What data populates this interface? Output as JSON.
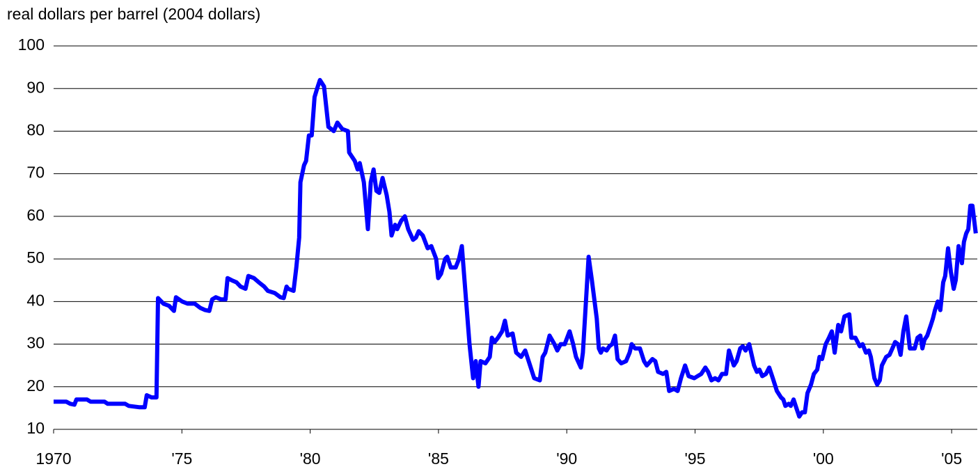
{
  "chart_data": {
    "type": "line",
    "y_label": "real dollars per barrel (2004 dollars)",
    "color": "#0000ff",
    "xlim": [
      1970,
      2006
    ],
    "ylim": [
      10,
      100
    ],
    "xticks": [
      1970,
      {
        "value": 1975,
        "label": "'75"
      },
      {
        "value": 1980,
        "label": "'80"
      },
      {
        "value": 1985,
        "label": "'85"
      },
      {
        "value": 1990,
        "label": "'90"
      },
      {
        "value": 1995,
        "label": "'95"
      },
      {
        "value": 2000,
        "label": "'00"
      },
      {
        "value": 2005,
        "label": "'05"
      }
    ],
    "yticks": [
      10,
      20,
      30,
      40,
      50,
      60,
      70,
      80,
      90,
      100
    ],
    "grid": true,
    "x": [
      1970.0,
      1970.49,
      1970.65,
      1970.81,
      1970.89,
      1971.3,
      1971.44,
      1971.98,
      1972.11,
      1972.79,
      1972.93,
      1973.33,
      1973.55,
      1973.63,
      1973.82,
      1974.01,
      1974.07,
      1974.28,
      1974.5,
      1974.69,
      1974.77,
      1975.01,
      1975.23,
      1975.5,
      1975.72,
      1975.91,
      1976.07,
      1976.18,
      1976.32,
      1976.53,
      1976.7,
      1976.78,
      1976.94,
      1977.13,
      1977.29,
      1977.48,
      1977.59,
      1977.81,
      1978.0,
      1978.21,
      1978.35,
      1978.62,
      1978.84,
      1978.97,
      1979.08,
      1979.14,
      1979.35,
      1979.46,
      1979.57,
      1979.62,
      1979.76,
      1979.84,
      1979.95,
      1980.06,
      1980.17,
      1980.27,
      1980.38,
      1980.54,
      1980.71,
      1980.92,
      1981.06,
      1981.25,
      1981.47,
      1981.52,
      1981.74,
      1981.85,
      1981.93,
      1982.09,
      1982.25,
      1982.36,
      1982.47,
      1982.58,
      1982.69,
      1982.82,
      1982.98,
      1983.09,
      1983.17,
      1983.31,
      1983.39,
      1983.55,
      1983.69,
      1983.82,
      1984.01,
      1984.12,
      1984.23,
      1984.39,
      1984.58,
      1984.72,
      1984.91,
      1984.99,
      1985.1,
      1985.26,
      1985.34,
      1985.48,
      1985.67,
      1985.8,
      1985.91,
      1986.08,
      1986.21,
      1986.35,
      1986.45,
      1986.56,
      1986.64,
      1986.83,
      1987.0,
      1987.08,
      1987.19,
      1987.32,
      1987.48,
      1987.59,
      1987.7,
      1987.89,
      1988.03,
      1988.22,
      1988.38,
      1988.57,
      1988.73,
      1988.95,
      1989.06,
      1989.16,
      1989.33,
      1989.52,
      1989.63,
      1989.76,
      1989.92,
      1990.11,
      1990.25,
      1990.36,
      1990.55,
      1990.63,
      1990.85,
      1990.98,
      1991.17,
      1991.25,
      1991.33,
      1991.41,
      1991.55,
      1991.66,
      1991.77,
      1991.88,
      1991.98,
      1992.12,
      1992.31,
      1992.45,
      1992.53,
      1992.66,
      1992.85,
      1993.01,
      1993.12,
      1993.34,
      1993.45,
      1993.56,
      1993.75,
      1993.88,
      1993.99,
      1994.18,
      1994.32,
      1994.45,
      1994.61,
      1994.75,
      1994.97,
      1995.1,
      1995.24,
      1995.4,
      1995.51,
      1995.64,
      1995.78,
      1995.91,
      1996.05,
      1996.21,
      1996.32,
      1996.51,
      1996.62,
      1996.76,
      1996.86,
      1996.97,
      1997.11,
      1997.3,
      1997.41,
      1997.51,
      1997.62,
      1997.76,
      1997.89,
      1998.03,
      1998.19,
      1998.35,
      1998.44,
      1998.52,
      1998.65,
      1998.73,
      1998.84,
      1998.95,
      1999.06,
      1999.17,
      1999.28,
      1999.38,
      1999.52,
      1999.63,
      1999.76,
      1999.85,
      1999.95,
      2000.09,
      2000.22,
      2000.33,
      2000.44,
      2000.58,
      2000.69,
      2000.82,
      2001.01,
      2001.09,
      2001.25,
      2001.42,
      2001.53,
      2001.66,
      2001.77,
      2001.85,
      2001.99,
      2002.1,
      2002.2,
      2002.28,
      2002.45,
      2002.58,
      2002.69,
      2002.8,
      2002.91,
      2003.01,
      2003.12,
      2003.23,
      2003.37,
      2003.56,
      2003.67,
      2003.78,
      2003.86,
      2003.94,
      2004.05,
      2004.19,
      2004.27,
      2004.35,
      2004.46,
      2004.56,
      2004.67,
      2004.75,
      2004.86,
      2004.97,
      2005.08,
      2005.16,
      2005.27,
      2005.4,
      2005.48,
      2005.57,
      2005.65,
      2005.73,
      2005.81,
      2005.94
    ],
    "values": [
      16.5,
      16.5,
      16,
      15.8,
      17,
      17,
      16.5,
      16.5,
      16,
      16,
      15.5,
      15.2,
      15.2,
      18,
      17.5,
      17.5,
      40.8,
      39.5,
      39,
      37.8,
      41,
      40,
      39.5,
      39.5,
      38.5,
      38,
      37.8,
      40.5,
      41,
      40.5,
      40.5,
      45.5,
      45,
      44.5,
      43.5,
      43,
      46,
      45.5,
      44.5,
      43.5,
      42.5,
      42,
      41,
      40.8,
      43.5,
      43,
      42.5,
      48,
      55,
      68,
      72,
      73,
      79,
      79,
      88,
      90,
      92,
      90.5,
      81,
      80,
      82,
      80.5,
      80,
      75,
      73,
      71,
      72.5,
      68,
      57,
      68,
      71,
      66,
      65.5,
      69,
      65,
      61,
      55.5,
      58,
      57,
      59,
      60,
      57,
      54.5,
      55,
      56.5,
      55.5,
      52.5,
      53,
      50,
      45.5,
      46.5,
      50,
      50.5,
      48,
      48,
      50,
      53,
      40,
      30,
      22,
      26,
      20,
      26,
      25.5,
      27,
      31.5,
      30.5,
      31.5,
      33,
      35.5,
      32,
      32.5,
      28,
      27,
      28.5,
      25,
      22,
      21.5,
      27,
      28,
      32,
      30,
      28.5,
      30,
      30,
      33,
      30,
      27,
      24.5,
      28,
      50.5,
      45,
      36,
      29,
      28,
      29,
      28.5,
      29.5,
      30,
      32,
      26.5,
      25.5,
      26,
      28,
      30,
      29,
      29,
      26,
      25,
      26.5,
      26,
      23.5,
      23,
      23.5,
      19,
      19.5,
      19,
      22,
      25,
      22.5,
      22,
      22.5,
      23,
      24.5,
      23.5,
      21.5,
      22,
      21.5,
      23,
      23,
      28.5,
      25,
      26,
      29,
      29.5,
      28.5,
      30,
      25,
      23.5,
      24,
      22.5,
      23,
      24.5,
      22,
      19,
      17.5,
      17,
      15.5,
      16,
      15.5,
      17,
      15,
      13,
      14,
      14,
      18.5,
      20.5,
      23,
      24,
      27,
      26.5,
      30,
      31.5,
      33,
      28,
      34.5,
      33,
      36.5,
      37,
      31.5,
      31.5,
      29.5,
      30,
      28,
      28.5,
      27,
      22,
      20.5,
      21.5,
      25,
      27,
      27.5,
      29,
      30.5,
      30,
      27.5,
      33,
      36.5,
      29,
      29,
      31.5,
      32,
      29,
      31,
      32,
      34.5,
      36,
      38,
      40,
      38,
      44.5,
      46,
      52.5,
      47,
      43,
      45,
      53,
      49,
      54,
      56,
      57,
      62.5,
      62.5,
      56
    ]
  }
}
